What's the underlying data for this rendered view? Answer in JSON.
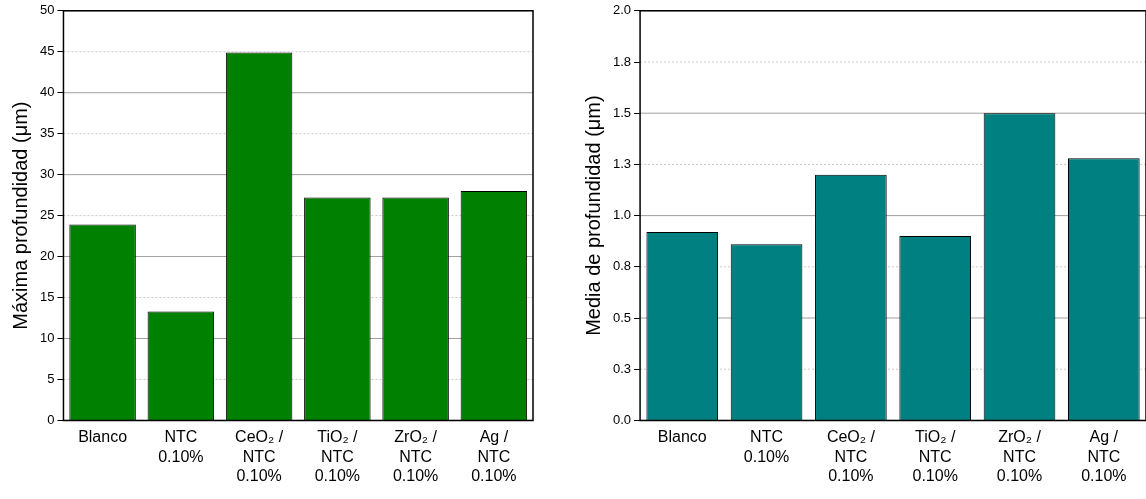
{
  "chart_data": [
    {
      "type": "bar",
      "ylabel": "Máxima profundidad (μm)",
      "categories": [
        "Blanco",
        "NTC 0.10%",
        "CeO₂ / NTC 0.10%",
        "TiO₂ / NTC 0.10%",
        "ZrO₂ / NTC 0.10%",
        "Ag / NTC 0.10%"
      ],
      "values": [
        23.9,
        13.3,
        44.9,
        27.2,
        27.2,
        28.0
      ],
      "color": "#008000",
      "ylim": [
        0,
        50
      ],
      "yticks": [
        0,
        5,
        10,
        15,
        20,
        25,
        30,
        35,
        40,
        45,
        50
      ],
      "grid": "y"
    },
    {
      "type": "bar",
      "ylabel": "Media de profundidad (μm)",
      "categories": [
        "Blanco",
        "NTC 0.10%",
        "CeO₂ / NTC 0.10%",
        "TiO₂ / NTC 0.10%",
        "ZrO₂ / NTC 0.10%",
        "Ag / NTC 0.10%"
      ],
      "values": [
        0.92,
        0.86,
        1.2,
        0.9,
        1.5,
        1.28
      ],
      "color": "#008080",
      "ylim": [
        0,
        2.0
      ],
      "yticks": [
        {
          "value": 0,
          "label": "0.0"
        },
        {
          "value": 0.25,
          "label": "0.3"
        },
        {
          "value": 0.5,
          "label": "0.5"
        },
        {
          "value": 0.75,
          "label": "0.8"
        },
        {
          "value": 1.0,
          "label": "1.0"
        },
        {
          "value": 1.25,
          "label": "1.3"
        },
        {
          "value": 1.5,
          "label": "1.5"
        },
        {
          "value": 1.75,
          "label": "1.8"
        },
        {
          "value": 2.0,
          "label": "2.0"
        }
      ],
      "grid": "y"
    }
  ]
}
